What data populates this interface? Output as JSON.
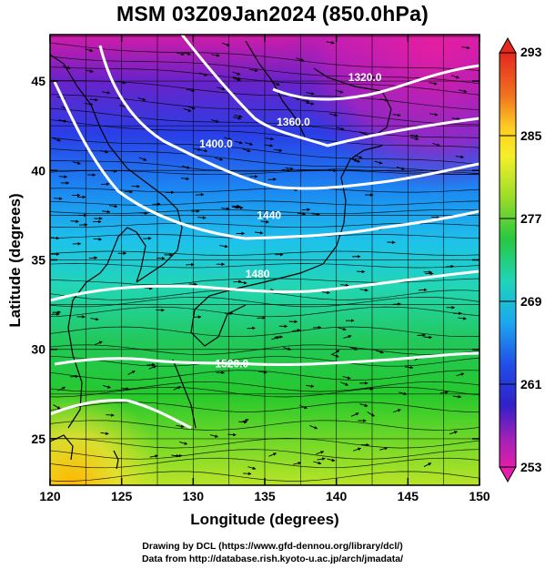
{
  "title": "MSM 03Z09Jan2024 (850.0hPa)",
  "footer": {
    "line1": "Drawing by DCL (https://www.gfd-dennou.org/library/dcl/)",
    "line2": "Data from http://database.rish.kyoto-u.ac.jp/arch/jmadata/"
  },
  "map": {
    "xlabel": "Longitude (degrees)",
    "ylabel": "Latitude  (degrees)",
    "lon_range": [
      120,
      150
    ],
    "lat_range": [
      22.4,
      47.6
    ],
    "lon_ticks": [
      "120",
      "125",
      "130",
      "135",
      "140",
      "145",
      "150"
    ],
    "lat_ticks": [
      "25",
      "30",
      "35",
      "40",
      "45"
    ],
    "grid": true,
    "contour_labels": [
      {
        "text": "1320.0",
        "lon": 142.0,
        "lat": 45.0
      },
      {
        "text": "1360.0",
        "lon": 137.0,
        "lat": 42.5
      },
      {
        "text": "1400.0",
        "lon": 131.6,
        "lat": 41.3
      },
      {
        "text": "1440",
        "lon": 135.3,
        "lat": 37.3
      },
      {
        "text": "1480",
        "lon": 134.5,
        "lat": 34.0
      },
      {
        "text": "1520.0",
        "lon": 132.7,
        "lat": 29.0
      }
    ]
  },
  "colorbar": {
    "tick_labels": [
      "293",
      "285",
      "277",
      "269",
      "261",
      "253"
    ],
    "min": 253,
    "max": 293
  }
}
